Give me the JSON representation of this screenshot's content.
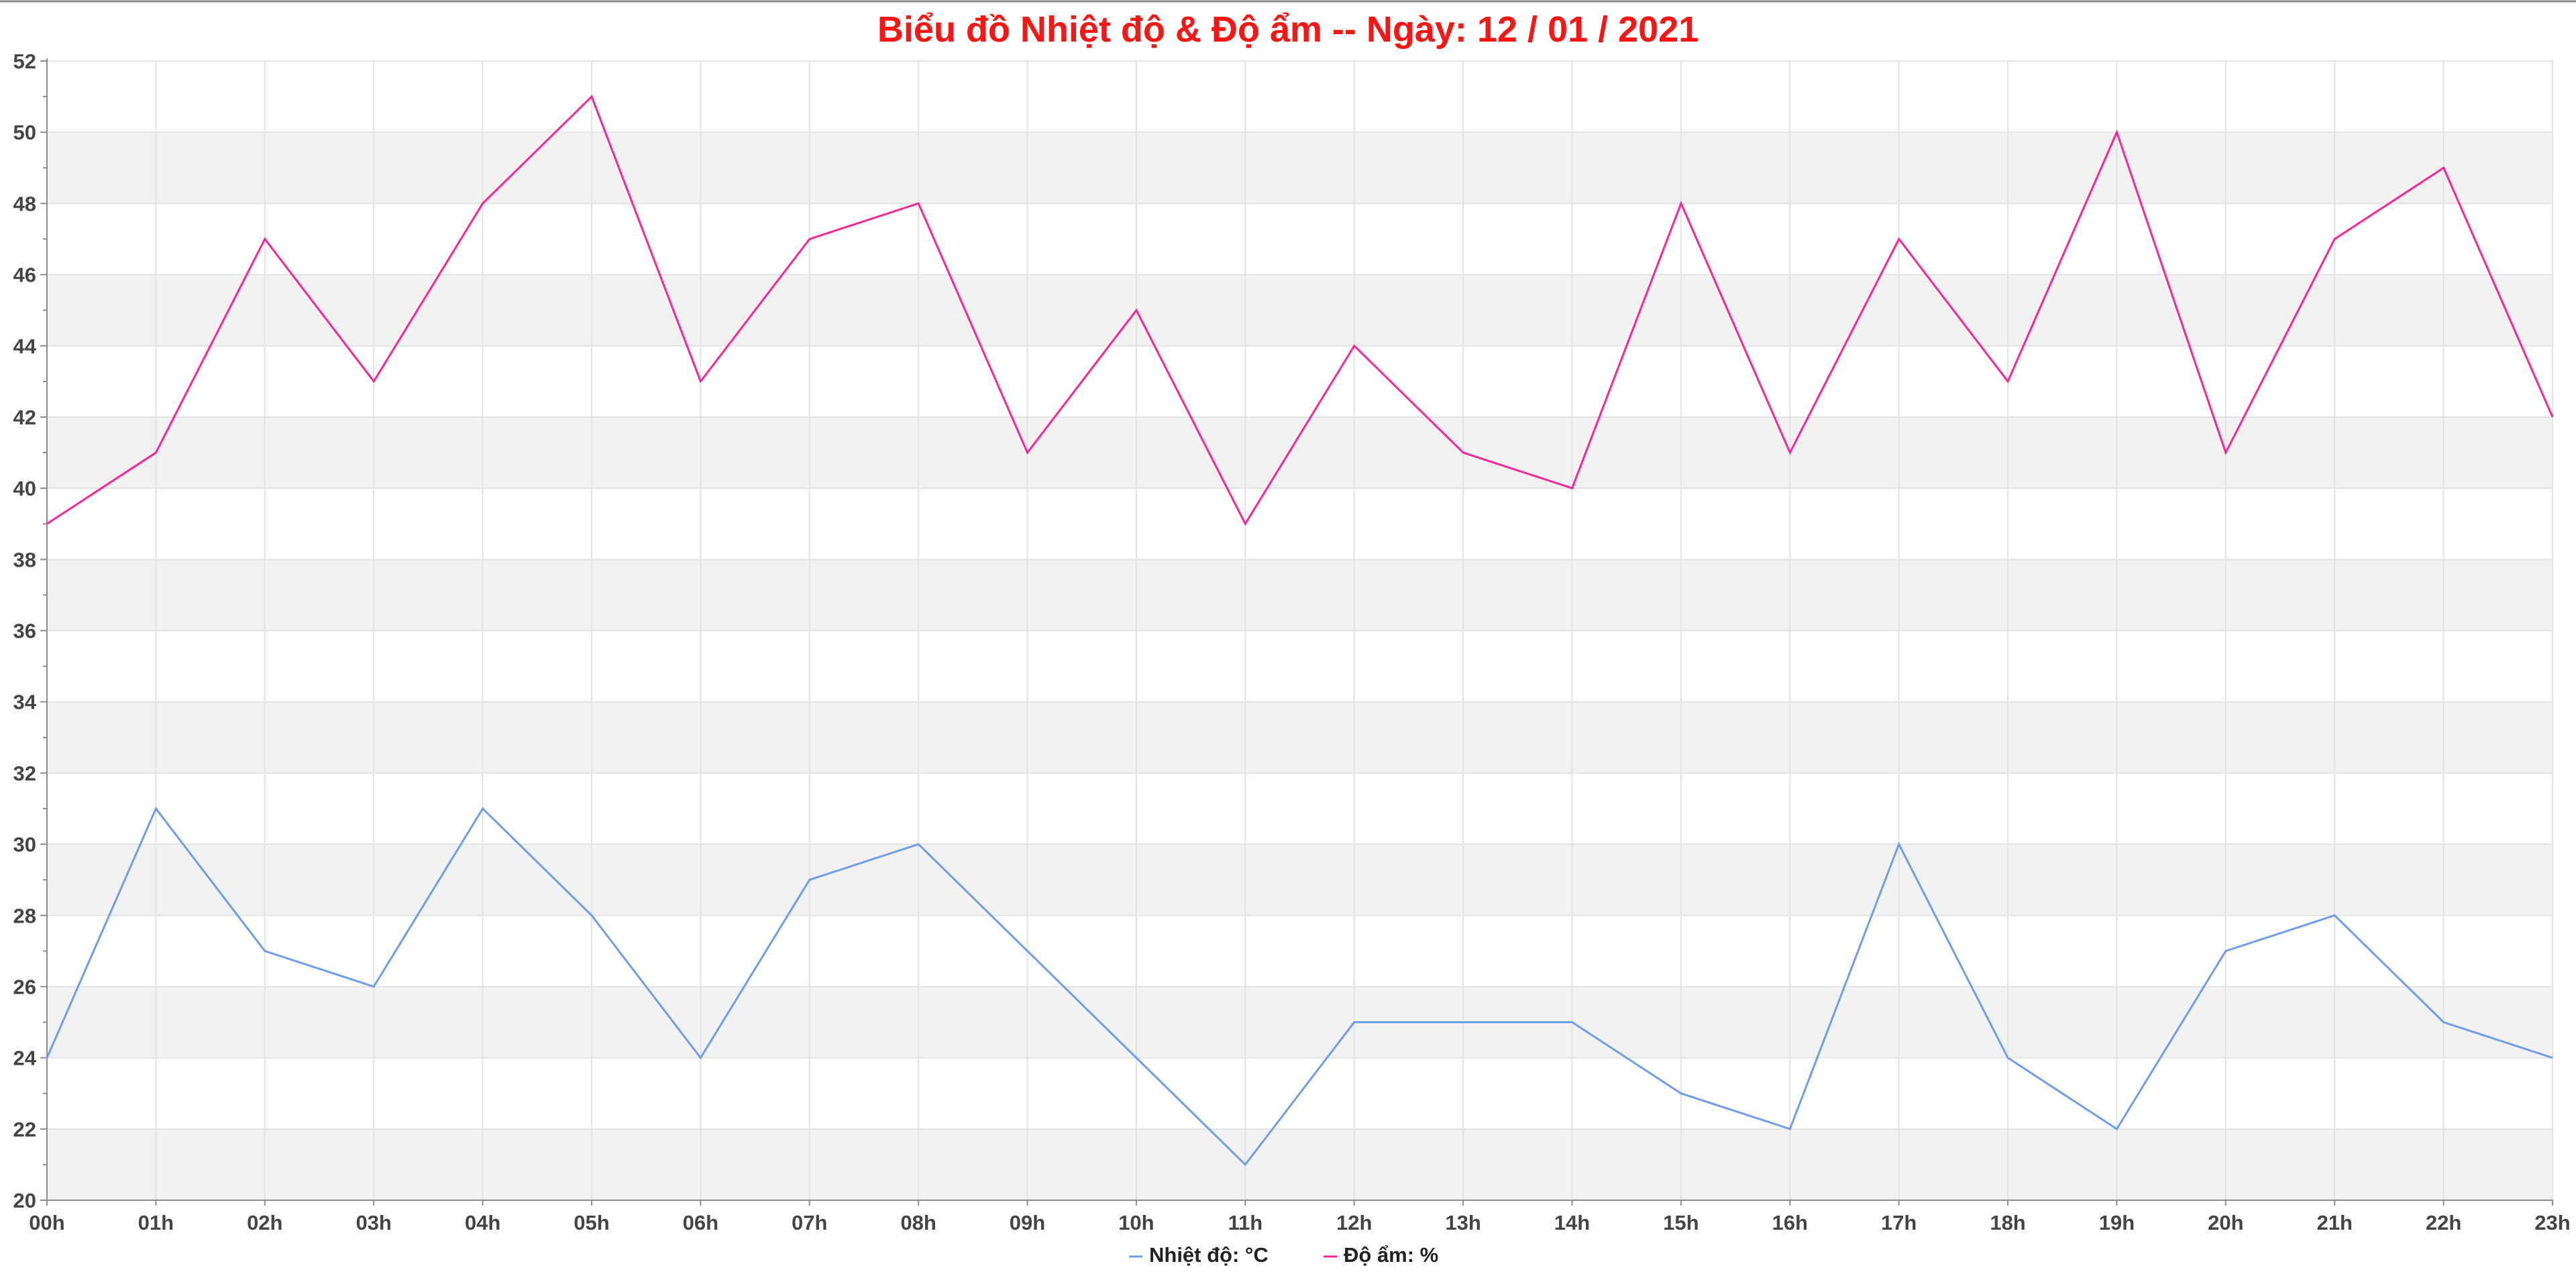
{
  "chart_data": {
    "type": "line",
    "title": "Biểu đồ Nhiệt độ & Độ ẩm -- Ngày: 12 / 01 / 2021",
    "xlabel": "",
    "ylabel": "",
    "categories": [
      "00h",
      "01h",
      "02h",
      "03h",
      "04h",
      "05h",
      "06h",
      "07h",
      "08h",
      "09h",
      "10h",
      "11h",
      "12h",
      "13h",
      "14h",
      "15h",
      "16h",
      "17h",
      "18h",
      "19h",
      "20h",
      "21h",
      "22h",
      "23h"
    ],
    "ylim": [
      20,
      52
    ],
    "yticks": [
      "20",
      "22",
      "24",
      "26",
      "28",
      "30",
      "32",
      "34",
      "36",
      "38",
      "40",
      "42",
      "44",
      "46",
      "48",
      "50",
      "52"
    ],
    "grid": true,
    "legend_position": "bottom-center",
    "series": [
      {
        "name": "Nhiệt độ: °C",
        "color": "#6f9ceb",
        "values": [
          24,
          31,
          27,
          26,
          31,
          28,
          24,
          29,
          30,
          27,
          24,
          21,
          25,
          25,
          25,
          23,
          22,
          30,
          24,
          22,
          27,
          28,
          25,
          24
        ]
      },
      {
        "name": "Độ ẩm: %",
        "color": "#ff2594",
        "values": [
          39,
          41,
          47,
          43,
          48,
          51,
          43,
          47,
          48,
          41,
          45,
          39,
          44,
          41,
          40,
          48,
          41,
          47,
          43,
          50,
          41,
          47,
          49,
          42
        ]
      }
    ]
  }
}
